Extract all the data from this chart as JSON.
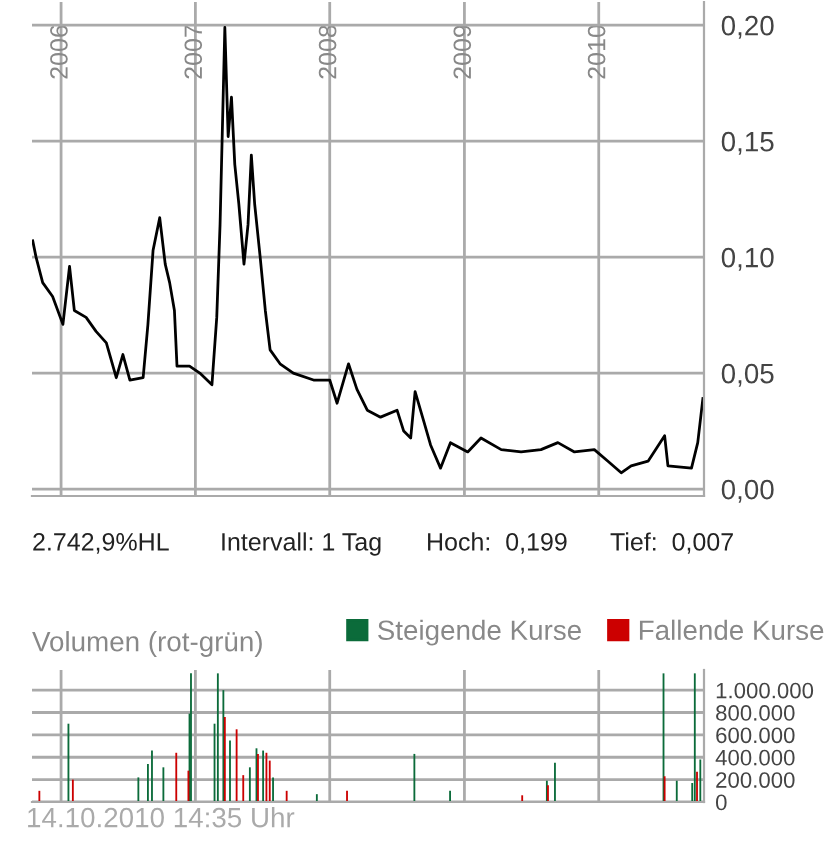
{
  "chart_data": [
    {
      "type": "line",
      "series": [
        {
          "color": "#000000",
          "x": [
            "2005-10-16",
            "2005-10-25",
            "2005-11-12",
            "2005-12-09",
            "2006-01-06",
            "2006-01-24",
            "2006-02-06",
            "2006-03-10",
            "2006-04-06",
            "2006-05-04",
            "2006-05-31",
            "2006-06-18",
            "2006-07-07",
            "2006-08-12",
            "2006-08-25",
            "2006-09-08",
            "2006-09-26",
            "2006-10-11",
            "2006-10-23",
            "2006-11-05",
            "2006-11-12",
            "2006-12-16",
            "2007-01-13",
            "2007-02-15",
            "2007-02-28",
            "2007-03-09",
            "2007-03-22",
            "2007-03-31",
            "2007-04-09",
            "2007-04-18",
            "2007-04-29",
            "2007-05-13",
            "2007-05-24",
            "2007-06-02",
            "2007-06-11",
            "2007-06-26",
            "2007-07-10",
            "2007-07-23",
            "2007-08-19",
            "2007-09-24",
            "2007-11-18",
            "2008-01-01",
            "2008-01-21",
            "2008-02-21",
            "2008-03-15",
            "2008-04-12",
            "2008-05-18",
            "2008-07-02",
            "2008-07-20",
            "2008-08-08",
            "2008-08-20",
            "2008-09-13",
            "2008-10-01",
            "2008-10-28",
            "2008-11-24",
            "2009-01-10",
            "2009-02-15",
            "2009-04-11",
            "2009-06-04",
            "2009-07-28",
            "2009-09-12",
            "2009-10-27",
            "2009-12-20",
            "2010-01-26",
            "2010-03-03",
            "2010-03-30",
            "2010-05-15",
            "2010-06-29",
            "2010-07-08",
            "2010-09-10",
            "2010-09-27",
            "2010-10-11"
          ],
          "values": [
            0.107,
            0.1,
            0.089,
            0.083,
            0.071,
            0.096,
            0.077,
            0.074,
            0.068,
            0.063,
            0.048,
            0.058,
            0.047,
            0.048,
            0.071,
            0.103,
            0.117,
            0.097,
            0.089,
            0.077,
            0.053,
            0.053,
            0.05,
            0.045,
            0.074,
            0.114,
            0.199,
            0.152,
            0.169,
            0.14,
            0.123,
            0.097,
            0.114,
            0.144,
            0.123,
            0.1,
            0.077,
            0.06,
            0.054,
            0.05,
            0.047,
            0.047,
            0.037,
            0.054,
            0.043,
            0.034,
            0.031,
            0.034,
            0.025,
            0.022,
            0.042,
            0.029,
            0.019,
            0.009,
            0.02,
            0.016,
            0.022,
            0.017,
            0.016,
            0.017,
            0.02,
            0.016,
            0.017,
            0.012,
            0.007,
            0.01,
            0.012,
            0.023,
            0.01,
            0.009,
            0.02,
            0.039
          ]
        }
      ],
      "xlim": [
        "2005-10-14",
        "2010-10-14"
      ],
      "xticks": [
        {
          "value": "2006-01-01",
          "label": "2006"
        },
        {
          "value": "2007-01-01",
          "label": "2007"
        },
        {
          "value": "2008-01-01",
          "label": "2008"
        },
        {
          "value": "2009-01-01",
          "label": "2009"
        },
        {
          "value": "2010-01-01",
          "label": "2010"
        }
      ],
      "ylim": [
        -0.003,
        0.21
      ],
      "yticks": [
        {
          "value": 0,
          "label": "0,00"
        },
        {
          "value": 0.05,
          "label": "0,05"
        },
        {
          "value": 0.1,
          "label": "0,10"
        },
        {
          "value": 0.15,
          "label": "0,15"
        },
        {
          "value": 0.2,
          "label": "0,20"
        }
      ],
      "grid": true,
      "annotations": [
        "2.742,9%HL",
        "Intervall: 1 Tag",
        "Hoch:  0,199",
        "Tief:  0,007"
      ]
    },
    {
      "type": "bar",
      "title": "Volumen (rot-grün)",
      "series": [
        {
          "name": "Steigende Kurse",
          "color": "#0b6b3a",
          "x": [
            "2006-01-21",
            "2006-07-30",
            "2006-08-25",
            "2006-09-05",
            "2006-10-06",
            "2006-12-16",
            "2006-12-20",
            "2007-02-22",
            "2007-03-03",
            "2007-03-18",
            "2007-04-05",
            "2007-05-29",
            "2007-06-16",
            "2007-07-04",
            "2007-07-31",
            "2007-11-27",
            "2008-08-18",
            "2008-11-23",
            "2009-08-13",
            "2009-09-04",
            "2010-06-26",
            "2010-08-01",
            "2010-09-12",
            "2010-09-19",
            "2010-10-04"
          ],
          "values": [
            700000,
            220000,
            340000,
            460000,
            310000,
            790000,
            1150000,
            700000,
            1150000,
            1000000,
            550000,
            310000,
            480000,
            460000,
            220000,
            70000,
            430000,
            100000,
            190000,
            350000,
            1150000,
            190000,
            170000,
            1150000,
            380000
          ]
        },
        {
          "name": "Fallende Kurse",
          "color": "#cc0000",
          "x": [
            "2005-11-03",
            "2006-02-02",
            "2006-11-10",
            "2006-12-13",
            "2007-03-22",
            "2007-04-23",
            "2007-05-11",
            "2007-06-20",
            "2007-07-13",
            "2007-07-22",
            "2007-09-06",
            "2008-02-17",
            "2009-06-07",
            "2009-08-16",
            "2010-06-29",
            "2010-09-25"
          ],
          "values": [
            100000,
            200000,
            440000,
            280000,
            760000,
            650000,
            240000,
            430000,
            440000,
            370000,
            100000,
            100000,
            60000,
            150000,
            230000,
            270000
          ]
        }
      ],
      "xlim": [
        "2005-10-14",
        "2010-10-14"
      ],
      "xticks": [
        {
          "value": "2006-01-01",
          "label": null
        },
        {
          "value": "2007-01-01",
          "label": null
        },
        {
          "value": "2008-01-01",
          "label": null
        },
        {
          "value": "2009-01-01",
          "label": null
        },
        {
          "value": "2010-01-01",
          "label": null
        }
      ],
      "ylim": [
        0,
        1180000
      ],
      "yticks": [
        {
          "value": 0,
          "label": "0"
        },
        {
          "value": 200000,
          "label": "200.000"
        },
        {
          "value": 400000,
          "label": "400.000"
        },
        {
          "value": 600000,
          "label": "600.000"
        },
        {
          "value": 800000,
          "label": "800.000"
        },
        {
          "value": 1000000,
          "label": "1.000.000"
        }
      ],
      "grid": true,
      "legend": "top right",
      "tick_labels": "y",
      "annotations": [
        "14.10.2010 14:35 Uhr"
      ]
    }
  ]
}
